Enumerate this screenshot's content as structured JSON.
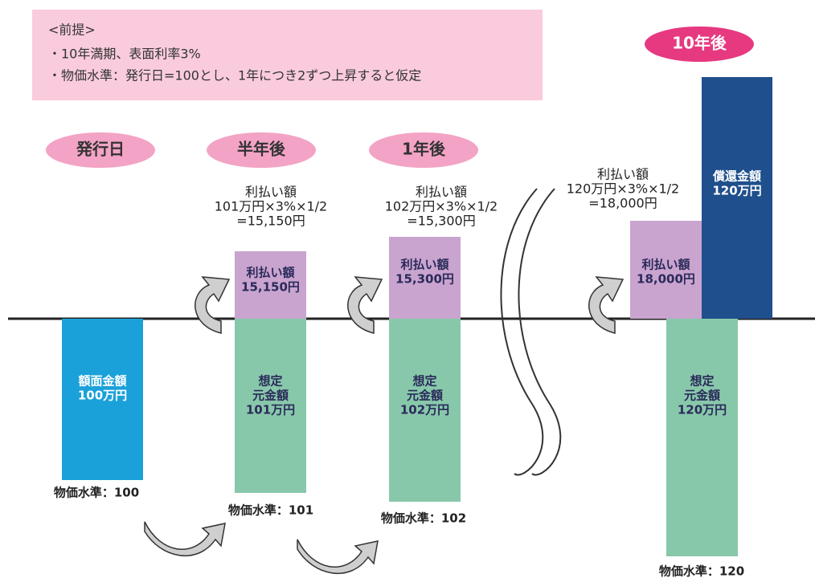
{
  "premise": {
    "heading": "<前提>",
    "lines": [
      "・10年満期、表面利率3%",
      "・物価水準：発行日=100とし、1年につき2ずつ上昇すると仮定"
    ]
  },
  "stages": [
    {
      "label": "発行日",
      "bars": [
        {
          "lines": [
            "額面金額",
            "100万円"
          ]
        }
      ],
      "price_level": "物価水準：100"
    },
    {
      "label": "半年後",
      "calculation": [
        "利払い額",
        "101万円×3%×1/2",
        "=15,150円"
      ],
      "bars": [
        {
          "lines": [
            "利払い額",
            "15,150円"
          ]
        },
        {
          "lines": [
            "想定",
            "元金額",
            "101万円"
          ]
        }
      ],
      "price_level": "物価水準：101"
    },
    {
      "label": "1年後",
      "calculation": [
        "利払い額",
        "102万円×3%×1/2",
        "=15,300円"
      ],
      "bars": [
        {
          "lines": [
            "利払い額",
            "15,300円"
          ]
        },
        {
          "lines": [
            "想定",
            "元金額",
            "102万円"
          ]
        }
      ],
      "price_level": "物価水準：102"
    },
    {
      "label": "10年後",
      "calculation": [
        "利払い額",
        "120万円×3%×1/2",
        "=18,000円"
      ],
      "bars": [
        {
          "lines": [
            "利払い額",
            "18,000円"
          ]
        },
        {
          "lines": [
            "償還金額",
            "120万円"
          ]
        },
        {
          "lines": [
            "想定",
            "元金額",
            "120万円"
          ]
        }
      ],
      "price_level": "物価水準：120"
    }
  ]
}
